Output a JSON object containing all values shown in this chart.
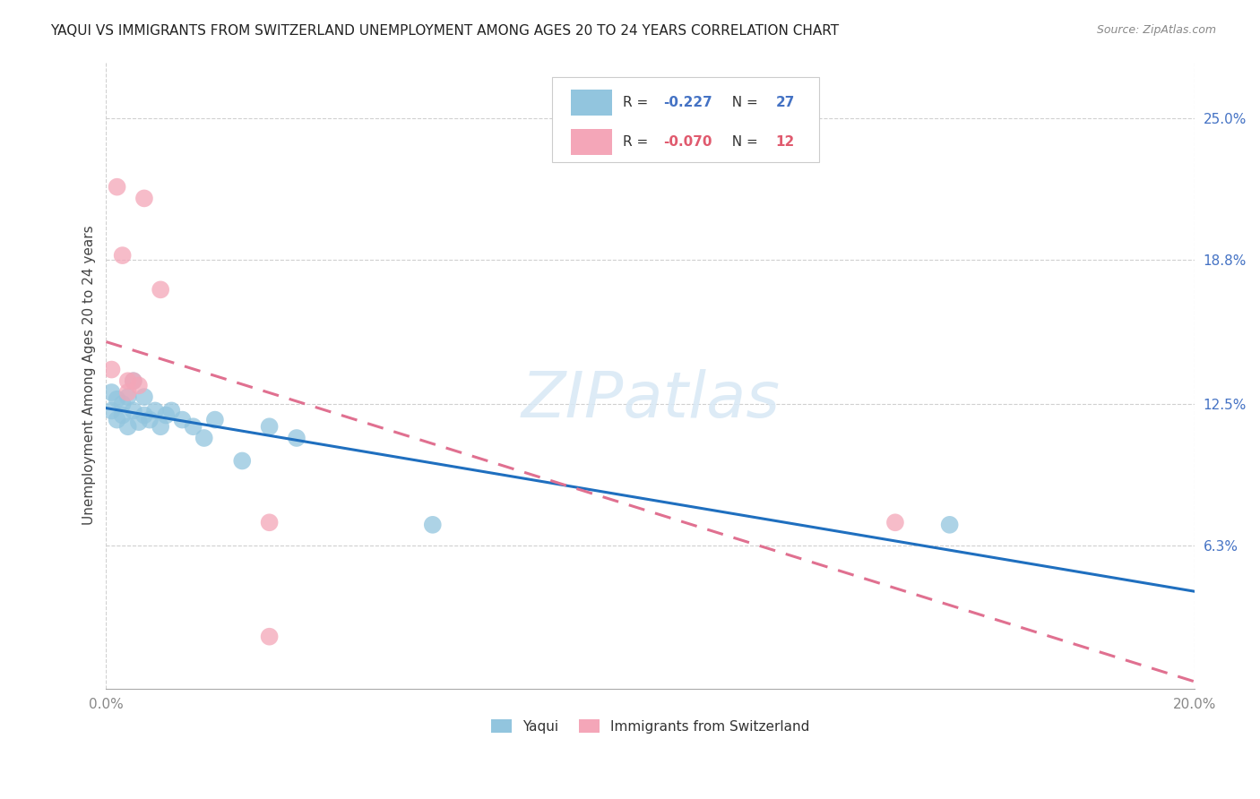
{
  "title": "YAQUI VS IMMIGRANTS FROM SWITZERLAND UNEMPLOYMENT AMONG AGES 20 TO 24 YEARS CORRELATION CHART",
  "source": "Source: ZipAtlas.com",
  "ylabel": "Unemployment Among Ages 20 to 24 years",
  "xlim": [
    0.0,
    0.2
  ],
  "ylim": [
    0.0,
    0.275
  ],
  "yticks": [
    0.063,
    0.125,
    0.188,
    0.25
  ],
  "ytick_labels": [
    "6.3%",
    "12.5%",
    "18.8%",
    "25.0%"
  ],
  "xticks": [
    0.0,
    0.2
  ],
  "xtick_labels": [
    "0.0%",
    "20.0%"
  ],
  "legend_labels": [
    "Yaqui",
    "Immigrants from Switzerland"
  ],
  "R_yaqui": -0.227,
  "N_yaqui": 27,
  "R_swiss": -0.07,
  "N_swiss": 12,
  "blue_scatter_color": "#92c5de",
  "pink_scatter_color": "#f4a6b8",
  "blue_line_color": "#1f6fbf",
  "pink_line_color": "#e07090",
  "yaqui_x": [
    0.001,
    0.001,
    0.002,
    0.002,
    0.003,
    0.003,
    0.004,
    0.004,
    0.005,
    0.005,
    0.006,
    0.007,
    0.007,
    0.008,
    0.009,
    0.01,
    0.011,
    0.012,
    0.014,
    0.016,
    0.018,
    0.02,
    0.025,
    0.03,
    0.035,
    0.06,
    0.155
  ],
  "yaqui_y": [
    0.13,
    0.122,
    0.118,
    0.127,
    0.12,
    0.125,
    0.115,
    0.128,
    0.135,
    0.122,
    0.117,
    0.128,
    0.12,
    0.118,
    0.122,
    0.115,
    0.12,
    0.122,
    0.118,
    0.115,
    0.11,
    0.118,
    0.1,
    0.115,
    0.11,
    0.072,
    0.072
  ],
  "swiss_x": [
    0.001,
    0.002,
    0.003,
    0.004,
    0.004,
    0.005,
    0.006,
    0.007,
    0.01,
    0.03,
    0.145,
    0.03
  ],
  "swiss_y": [
    0.14,
    0.22,
    0.19,
    0.135,
    0.13,
    0.135,
    0.133,
    0.215,
    0.175,
    0.073,
    0.073,
    0.023
  ],
  "watermark": "ZIPatlas",
  "background_color": "#ffffff",
  "grid_color": "#d0d0d0",
  "title_color": "#222222",
  "axis_label_color": "#444444",
  "tick_color": "#888888"
}
